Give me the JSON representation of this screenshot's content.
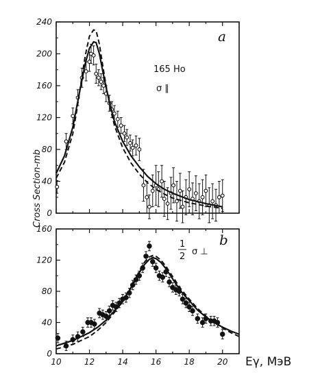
{
  "chart_data": [
    {
      "type": "scatter",
      "panel_label": "a",
      "annotation_isotope": "165 Ho",
      "annotation_quantity": "σ ∥",
      "ylabel": "Cross Section-mb",
      "xlim": [
        10,
        21
      ],
      "ylim": [
        0,
        240
      ],
      "y_ticks": [
        "0",
        "40",
        "80",
        "120",
        "160",
        "200",
        "240"
      ],
      "grid": false,
      "series": [
        {
          "marker": "open-circle",
          "x": [
            10.05,
            10.6,
            11.0,
            11.3,
            11.55,
            11.8,
            12.0,
            12.1,
            12.25,
            12.4,
            12.55,
            12.7,
            12.85,
            13.0,
            13.2,
            13.35,
            13.5,
            13.7,
            13.9,
            14.1,
            14.25,
            14.45,
            14.6,
            14.8,
            15.0,
            15.25,
            15.45,
            15.6,
            15.8,
            16.0,
            16.15,
            16.35,
            16.5,
            16.7,
            16.9,
            17.05,
            17.25,
            17.45,
            17.6,
            17.8,
            18.0,
            18.2,
            18.4,
            18.6,
            18.8,
            19.0,
            19.2,
            19.4,
            19.6,
            19.8,
            20.0
          ],
          "y": [
            33,
            90,
            122,
            145,
            170,
            178,
            190,
            200,
            198,
            175,
            170,
            165,
            160,
            150,
            138,
            130,
            125,
            118,
            110,
            100,
            95,
            88,
            82,
            85,
            80,
            35,
            20,
            8,
            28,
            35,
            30,
            40,
            18,
            12,
            25,
            35,
            15,
            28,
            8,
            20,
            30,
            18,
            25,
            15,
            20,
            28,
            10,
            15,
            10,
            20,
            22
          ],
          "err": [
            8,
            10,
            10,
            10,
            12,
            12,
            12,
            12,
            12,
            12,
            10,
            10,
            10,
            10,
            10,
            10,
            10,
            10,
            10,
            10,
            10,
            10,
            10,
            12,
            14,
            20,
            20,
            15,
            20,
            25,
            22,
            20,
            22,
            20,
            20,
            22,
            25,
            22,
            20,
            22,
            22,
            20,
            22,
            22,
            22,
            20,
            22,
            22,
            20,
            20,
            20
          ]
        },
        {
          "line_style": "solid",
          "x": [
            10,
            10.5,
            11,
            11.25,
            11.5,
            11.75,
            12,
            12.25,
            12.4,
            12.6,
            12.8,
            13,
            13.25,
            13.5,
            14,
            14.5,
            15,
            15.5,
            16,
            16.5,
            17,
            18,
            19,
            20
          ],
          "y": [
            50,
            72,
            108,
            135,
            162,
            188,
            207,
            215,
            214,
            200,
            178,
            158,
            135,
            115,
            90,
            72,
            58,
            46,
            37,
            30,
            25,
            17,
            12,
            8
          ]
        },
        {
          "line_style": "dashed",
          "x": [
            10,
            10.5,
            11,
            11.25,
            11.5,
            11.75,
            12,
            12.25,
            12.4,
            12.6,
            12.8,
            13,
            13.25,
            13.5,
            14,
            14.5,
            15,
            15.5,
            16,
            16.5,
            17,
            18,
            19,
            20
          ],
          "y": [
            44,
            64,
            100,
            130,
            165,
            198,
            222,
            230,
            229,
            212,
            185,
            160,
            132,
            110,
            82,
            63,
            49,
            38,
            30,
            24,
            19,
            13,
            9,
            6
          ]
        }
      ]
    },
    {
      "type": "scatter",
      "panel_label": "b",
      "annotation_numerator": "1",
      "annotation_denominator": "2",
      "annotation_quantity": "σ ⊥",
      "xlabel": "Eγ, МэВ",
      "xlim": [
        10,
        21
      ],
      "ylim": [
        0,
        160
      ],
      "x_ticks": [
        "10",
        "12",
        "14",
        "16",
        "18",
        "20"
      ],
      "y_ticks": [
        "0",
        "40",
        "80",
        "120",
        "160"
      ],
      "grid": false,
      "series": [
        {
          "marker": "filled-circle",
          "x": [
            10.1,
            10.6,
            11.0,
            11.3,
            11.6,
            11.9,
            12.1,
            12.3,
            12.6,
            12.8,
            13.0,
            13.2,
            13.4,
            13.6,
            13.8,
            14.0,
            14.2,
            14.4,
            14.6,
            14.8,
            15.0,
            15.2,
            15.4,
            15.6,
            15.8,
            16.0,
            16.2,
            16.4,
            16.6,
            16.8,
            17.0,
            17.2,
            17.4,
            17.6,
            17.8,
            18.0,
            18.2,
            18.5,
            18.8,
            19.0,
            19.3,
            19.5,
            19.7,
            20.0
          ],
          "y": [
            20,
            10,
            18,
            22,
            28,
            40,
            40,
            38,
            52,
            50,
            48,
            55,
            62,
            60,
            65,
            70,
            72,
            78,
            88,
            95,
            100,
            110,
            125,
            138,
            118,
            110,
            100,
            98,
            105,
            92,
            85,
            82,
            80,
            70,
            65,
            60,
            55,
            45,
            40,
            45,
            42,
            42,
            40,
            25
          ]
        },
        {
          "line_style": "solid",
          "x": [
            10,
            11,
            12,
            12.5,
            13,
            13.5,
            14,
            14.5,
            15,
            15.3,
            15.6,
            15.8,
            16,
            16.3,
            16.6,
            17,
            17.5,
            18,
            18.5,
            19,
            19.5,
            20,
            20.5,
            21
          ],
          "y": [
            10,
            17,
            27,
            34,
            43,
            55,
            68,
            84,
            104,
            114,
            121,
            123,
            122,
            117,
            109,
            96,
            80,
            68,
            56,
            47,
            40,
            34,
            29,
            25
          ]
        },
        {
          "line_style": "dashed",
          "x": [
            10,
            11,
            12,
            12.5,
            13,
            13.5,
            14,
            14.5,
            15,
            15.3,
            15.6,
            15.8,
            16,
            16.3,
            16.6,
            17,
            17.5,
            18,
            18.5,
            19,
            19.5,
            20,
            20.5,
            21
          ],
          "y": [
            6,
            12,
            22,
            30,
            40,
            53,
            67,
            85,
            106,
            117,
            124,
            126,
            125,
            120,
            112,
            99,
            83,
            70,
            58,
            48,
            40,
            33,
            27,
            22
          ]
        }
      ]
    }
  ]
}
